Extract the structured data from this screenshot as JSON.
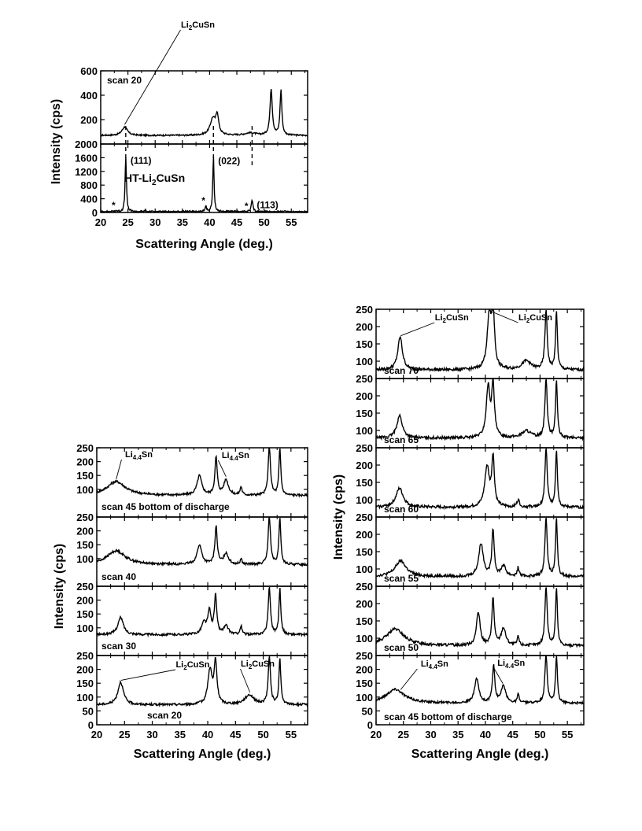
{
  "chart_data": [
    {
      "id": "fig-top",
      "type": "line",
      "xlabel": "Scattering Angle (deg.)",
      "ylabel": "Intensity (cps)",
      "xlim": [
        20,
        58
      ],
      "xticks": [
        20,
        25,
        30,
        35,
        40,
        45,
        50,
        55
      ],
      "panels": [
        {
          "label": "scan 20",
          "ylim": [
            0,
            600
          ],
          "yticks": [
            200,
            400,
            600
          ],
          "annotations": [
            {
              "text": "Li2CuSn",
              "parts": [
                [
                  "Li",
                  "n"
                ],
                [
                  "2",
                  "s"
                ],
                [
                  "CuSn",
                  "n"
                ]
              ],
              "x": 39
            }
          ],
          "baseline": 70,
          "peaks": [
            [
              24.4,
              70,
              0.6
            ],
            [
              40.6,
              135,
              0.6
            ],
            [
              41.4,
              150,
              0.3
            ],
            [
              47.5,
              20,
              1.2
            ],
            [
              51.3,
              380,
              0.25
            ],
            [
              53.1,
              370,
              0.2
            ]
          ]
        },
        {
          "label": "HT-Li2CuSn",
          "label_parts": [
            [
              "HT-Li",
              "n"
            ],
            [
              "2",
              "s"
            ],
            [
              "CuSn",
              "n"
            ]
          ],
          "ylim": [
            0,
            2000
          ],
          "yticks": [
            0,
            400,
            800,
            1200,
            1600,
            2000
          ],
          "baseline": 20,
          "peaks": [
            [
              22.8,
              35,
              0.2
            ],
            [
              24.6,
              1640,
              0.14
            ],
            [
              28.2,
              40,
              0.15
            ],
            [
              39.3,
              170,
              0.15
            ],
            [
              40.7,
              1620,
              0.14
            ],
            [
              47.8,
              330,
              0.18
            ]
          ],
          "markers": [
            {
              "text": "*",
              "x": 22.8
            },
            {
              "text": "(111)",
              "x": 24.6
            },
            {
              "text": "*",
              "x": 39.3
            },
            {
              "text": "(022)",
              "x": 40.7
            },
            {
              "text": "*",
              "x": 47.2
            },
            {
              "text": "(113)",
              "x": 47.8
            }
          ]
        }
      ],
      "reference_lines_x": [
        24.6,
        40.7,
        47.8
      ]
    },
    {
      "id": "fig-left",
      "type": "line",
      "xlabel": "Scattering Angle (deg.)",
      "ylabel": "Intensity (cps)",
      "xlim": [
        20,
        58
      ],
      "xticks": [
        20,
        25,
        30,
        35,
        40,
        45,
        50,
        55
      ],
      "panels": [
        {
          "label": "scan 45 bottom of discharge",
          "ylim": [
            0,
            250
          ],
          "yticks": [
            100,
            150,
            200,
            250
          ],
          "annotations": [
            {
              "text": "Li4.4Sn",
              "parts": [
                [
                  "Li",
                  "n"
                ],
                [
                  "4.4",
                  "s"
                ],
                [
                  "Sn",
                  "n"
                ]
              ],
              "x": 29
            },
            {
              "text": "Li4.4Sn",
              "parts": [
                [
                  "Li",
                  "n"
                ],
                [
                  "4.4",
                  "s"
                ],
                [
                  "Sn",
                  "n"
                ]
              ],
              "x": 45
            }
          ],
          "baseline": 78,
          "peaks": [
            [
              23.5,
              50,
              2.0
            ],
            [
              38.5,
              70,
              0.5
            ],
            [
              41.5,
              135,
              0.25
            ],
            [
              43.3,
              55,
              0.5
            ],
            [
              46,
              30,
              0.2
            ],
            [
              51.1,
              175,
              0.25
            ],
            [
              53.0,
              170,
              0.2
            ]
          ]
        },
        {
          "label": "scan 40",
          "ylim": [
            0,
            250
          ],
          "yticks": [
            100,
            150,
            200,
            250
          ],
          "baseline": 78,
          "peaks": [
            [
              23.5,
              50,
              2.0
            ],
            [
              38.5,
              70,
              0.5
            ],
            [
              41.5,
              135,
              0.25
            ],
            [
              43.3,
              40,
              0.5
            ],
            [
              46,
              20,
              0.2
            ],
            [
              51.1,
              175,
              0.25
            ],
            [
              53.0,
              170,
              0.2
            ]
          ]
        },
        {
          "label": "scan 30",
          "ylim": [
            0,
            250
          ],
          "yticks": [
            100,
            150,
            200,
            250
          ],
          "baseline": 75,
          "peaks": [
            [
              24.3,
              62,
              0.6
            ],
            [
              39.3,
              40,
              0.5
            ],
            [
              40.3,
              80,
              0.35
            ],
            [
              41.4,
              140,
              0.25
            ],
            [
              43.3,
              30,
              0.5
            ],
            [
              46,
              30,
              0.2
            ],
            [
              51.1,
              170,
              0.25
            ],
            [
              53.0,
              165,
              0.2
            ]
          ]
        },
        {
          "label": "scan 20",
          "ylim": [
            0,
            250
          ],
          "yticks": [
            0,
            50,
            100,
            150,
            200,
            250
          ],
          "annotations": [
            {
              "text": "Li2CuSn",
              "parts": [
                [
                  "Li",
                  "n"
                ],
                [
                  "2",
                  "s"
                ],
                [
                  "CuSn",
                  "n"
                ]
              ],
              "x": 38
            },
            {
              "text": "Li2CuSn",
              "parts": [
                [
                  "Li",
                  "n"
                ],
                [
                  "2",
                  "s"
                ],
                [
                  "CuSn",
                  "n"
                ]
              ],
              "x": 49
            }
          ],
          "baseline": 72,
          "peaks": [
            [
              24.3,
              82,
              0.6
            ],
            [
              40.4,
              125,
              0.45
            ],
            [
              41.4,
              150,
              0.3
            ],
            [
              47.5,
              35,
              1.0
            ],
            [
              51.1,
              170,
              0.25
            ],
            [
              53.0,
              165,
              0.2
            ]
          ]
        }
      ]
    },
    {
      "id": "fig-right",
      "type": "line",
      "xlabel": "Scattering Angle (deg.)",
      "ylabel": "Intensity (cps)",
      "xlim": [
        20,
        58
      ],
      "xticks": [
        20,
        25,
        30,
        35,
        40,
        45,
        50,
        55
      ],
      "panels": [
        {
          "label": "scan 70",
          "ylim": [
            50,
            250
          ],
          "yticks": [
            100,
            150,
            200,
            250
          ],
          "annotations": [
            {
              "text": "Li2CuSn",
              "parts": [
                [
                  "Li",
                  "n"
                ],
                [
                  "2",
                  "s"
                ],
                [
                  "CuSn",
                  "n"
                ]
              ],
              "x": 35
            },
            {
              "text": "Li2CuSn",
              "parts": [
                [
                  "Li",
                  "n"
                ],
                [
                  "2",
                  "s"
                ],
                [
                  "CuSn",
                  "n"
                ]
              ],
              "x": 48
            }
          ],
          "baseline": 75,
          "peaks": [
            [
              24.4,
              95,
              0.5
            ],
            [
              40.7,
              150,
              0.45
            ],
            [
              41.4,
              165,
              0.3
            ],
            [
              47.5,
              25,
              1.0
            ],
            [
              51.1,
              170,
              0.25
            ],
            [
              53.0,
              165,
              0.2
            ]
          ]
        },
        {
          "label": "scan 65",
          "ylim": [
            50,
            250
          ],
          "yticks": [
            100,
            150,
            200,
            250
          ],
          "baseline": 78,
          "peaks": [
            [
              24.3,
              65,
              0.6
            ],
            [
              40.5,
              145,
              0.4
            ],
            [
              41.4,
              145,
              0.3
            ],
            [
              47.5,
              20,
              1.0
            ],
            [
              51.1,
              170,
              0.25
            ],
            [
              53.0,
              165,
              0.2
            ]
          ]
        },
        {
          "label": "scan 60",
          "ylim": [
            50,
            250
          ],
          "yticks": [
            100,
            150,
            200,
            250
          ],
          "baseline": 78,
          "peaks": [
            [
              24.3,
              55,
              0.8
            ],
            [
              40.3,
              115,
              0.5
            ],
            [
              41.4,
              140,
              0.28
            ],
            [
              46,
              20,
              0.3
            ],
            [
              51.1,
              170,
              0.25
            ],
            [
              53.0,
              165,
              0.2
            ]
          ]
        },
        {
          "label": "scan 55",
          "ylim": [
            50,
            250
          ],
          "yticks": [
            100,
            150,
            200,
            250
          ],
          "baseline": 78,
          "peaks": [
            [
              24.5,
              45,
              1.2
            ],
            [
              39.2,
              95,
              0.5
            ],
            [
              41.4,
              135,
              0.25
            ],
            [
              43.3,
              30,
              0.5
            ],
            [
              46,
              25,
              0.2
            ],
            [
              51.1,
              170,
              0.25
            ],
            [
              53.0,
              165,
              0.2
            ]
          ]
        },
        {
          "label": "scan 50",
          "ylim": [
            50,
            250
          ],
          "yticks": [
            100,
            150,
            200,
            250
          ],
          "baseline": 78,
          "peaks": [
            [
              23.5,
              48,
              2.0
            ],
            [
              38.7,
              95,
              0.4
            ],
            [
              41.4,
              135,
              0.25
            ],
            [
              43.3,
              50,
              0.5
            ],
            [
              46,
              25,
              0.2
            ],
            [
              51.1,
              170,
              0.25
            ],
            [
              53.0,
              165,
              0.2
            ]
          ]
        },
        {
          "label": "scan 45 bottom of discharge",
          "ylim": [
            0,
            250
          ],
          "yticks": [
            0,
            50,
            100,
            150,
            200,
            250
          ],
          "annotations": [
            {
              "text": "Li4.4Sn",
              "parts": [
                [
                  "Li",
                  "n"
                ],
                [
                  "4.4",
                  "s"
                ],
                [
                  "Sn",
                  "n"
                ]
              ],
              "x": 32
            },
            {
              "text": "Li4.4Sn",
              "parts": [
                [
                  "Li",
                  "n"
                ],
                [
                  "4.4",
                  "s"
                ],
                [
                  "Sn",
                  "n"
                ]
              ],
              "x": 44
            }
          ],
          "baseline": 78,
          "peaks": [
            [
              23.5,
              50,
              2.0
            ],
            [
              38.4,
              88,
              0.45
            ],
            [
              41.5,
              135,
              0.25
            ],
            [
              43.3,
              60,
              0.5
            ],
            [
              46,
              30,
              0.2
            ],
            [
              51.1,
              175,
              0.25
            ],
            [
              53.0,
              170,
              0.2
            ]
          ]
        }
      ]
    }
  ]
}
